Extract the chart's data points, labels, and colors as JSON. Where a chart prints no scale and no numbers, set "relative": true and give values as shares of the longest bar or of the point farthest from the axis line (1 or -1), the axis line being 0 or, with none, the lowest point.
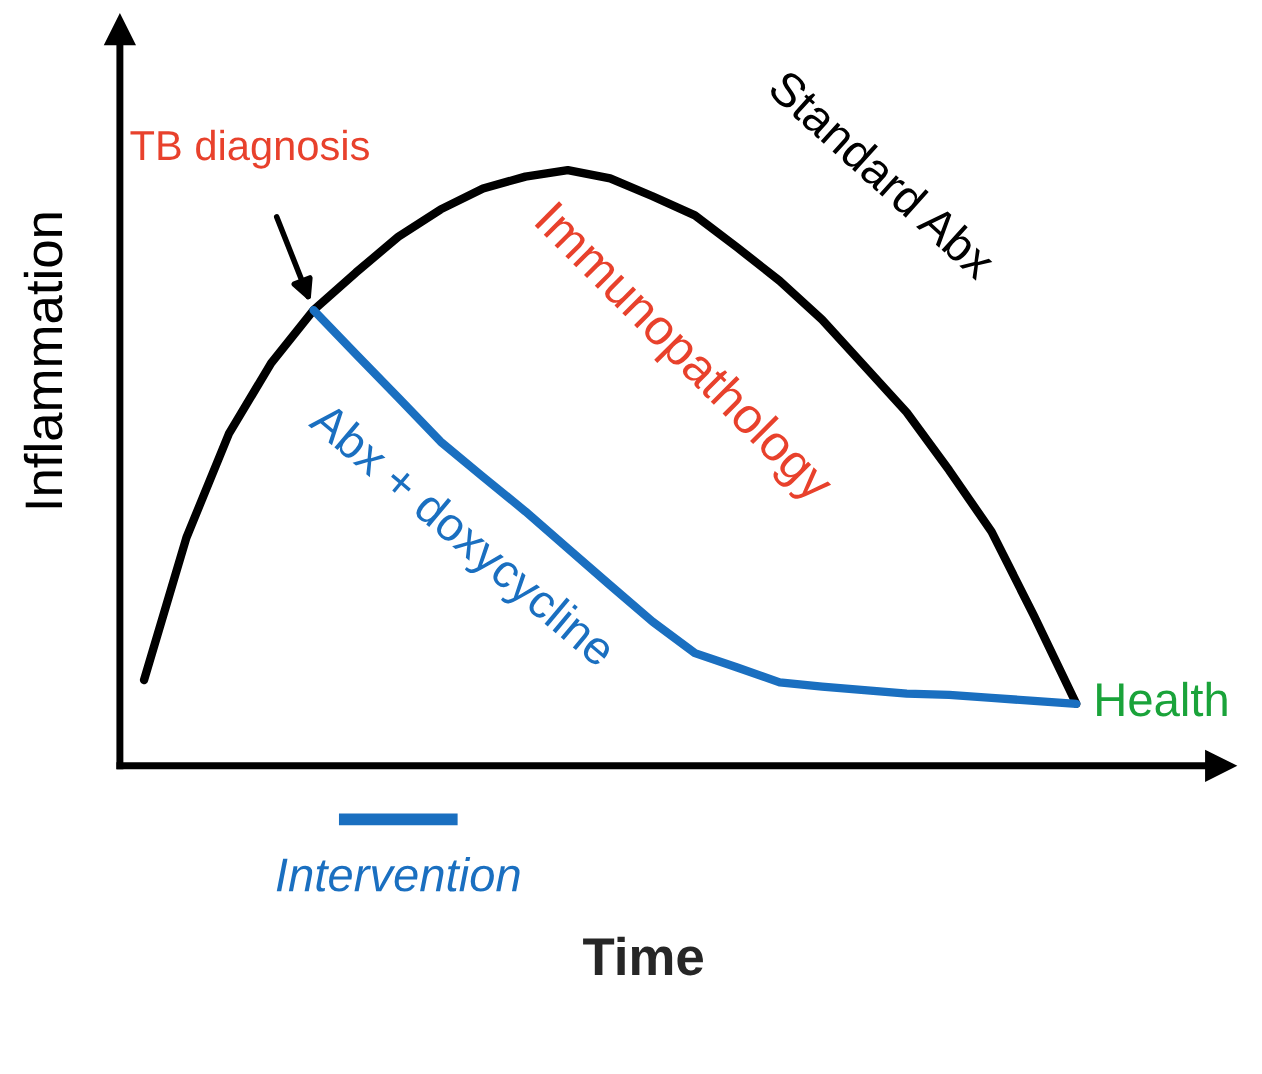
{
  "chart_data": {
    "type": "line",
    "relative": true,
    "xlabel": "Time",
    "ylabel": "Inflammation",
    "categories": [
      null,
      null,
      null,
      null,
      null,
      null,
      null,
      null,
      null,
      null,
      null,
      null,
      null,
      null,
      null,
      null,
      null,
      null,
      null,
      null,
      null,
      null,
      null
    ],
    "series": [
      {
        "name": "Standard Abx",
        "color": "#000000",
        "values": [
          0.144,
          0.383,
          0.557,
          0.676,
          0.765,
          0.828,
          0.888,
          0.934,
          0.969,
          0.989,
          1.0,
          0.986,
          0.956,
          0.924,
          0.87,
          0.814,
          0.749,
          0.671,
          0.593,
          0.496,
          0.393,
          0.252,
          0.104
        ]
      },
      {
        "name": "Abx + doxycycline",
        "color": "#1a6fc0",
        "values": [
          null,
          null,
          null,
          null,
          0.765,
          0.691,
          0.618,
          0.544,
          0.485,
          0.427,
          0.365,
          0.303,
          0.242,
          0.189,
          0.165,
          0.14,
          0.133,
          0.127,
          0.121,
          0.119,
          0.114,
          0.109,
          0.104
        ]
      }
    ],
    "annotations": [
      "TB diagnosis",
      "Immunopathology",
      "Health",
      "Intervention"
    ],
    "line_style": "solid",
    "legend": false
  }
}
